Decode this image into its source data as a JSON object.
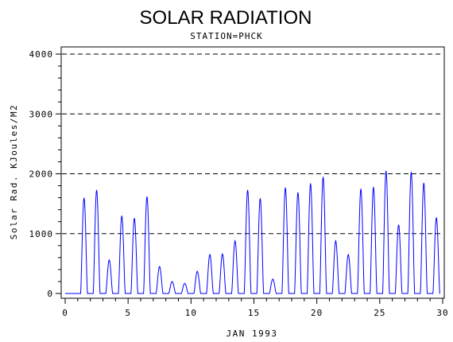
{
  "chart_data": {
    "type": "line",
    "title": "SOLAR RADIATION",
    "subtitle": "STATION=PHCK",
    "xlabel": "JAN 1993",
    "ylabel": "Solar Rad. KJoules/M2",
    "xlim": [
      0,
      30
    ],
    "ylim": [
      0,
      4000
    ],
    "xticks": [
      0,
      5,
      10,
      15,
      20,
      25,
      30
    ],
    "yticks": [
      0,
      1000,
      2000,
      3000,
      4000
    ],
    "grid": "horizontal-dashed",
    "series_color": "#0000ff",
    "daily_peaks": [
      {
        "day": 1,
        "x": 1.5,
        "peak": 1600
      },
      {
        "day": 2,
        "x": 2.5,
        "peak": 1730
      },
      {
        "day": 3,
        "x": 3.5,
        "peak": 560
      },
      {
        "day": 4,
        "x": 4.5,
        "peak": 1300
      },
      {
        "day": 5,
        "x": 5.5,
        "peak": 1260
      },
      {
        "day": 6,
        "x": 6.5,
        "peak": 1620
      },
      {
        "day": 7,
        "x": 7.5,
        "peak": 450
      },
      {
        "day": 8,
        "x": 8.5,
        "peak": 200
      },
      {
        "day": 9,
        "x": 9.5,
        "peak": 170
      },
      {
        "day": 10,
        "x": 10.5,
        "peak": 370
      },
      {
        "day": 11,
        "x": 11.5,
        "peak": 650
      },
      {
        "day": 12,
        "x": 12.5,
        "peak": 660
      },
      {
        "day": 13,
        "x": 13.5,
        "peak": 880
      },
      {
        "day": 14,
        "x": 14.5,
        "peak": 1730
      },
      {
        "day": 15,
        "x": 15.5,
        "peak": 1590
      },
      {
        "day": 16,
        "x": 16.5,
        "peak": 240
      },
      {
        "day": 17,
        "x": 17.5,
        "peak": 1770
      },
      {
        "day": 18,
        "x": 18.5,
        "peak": 1690
      },
      {
        "day": 19,
        "x": 19.5,
        "peak": 1840
      },
      {
        "day": 20,
        "x": 20.5,
        "peak": 1950
      },
      {
        "day": 21,
        "x": 21.5,
        "peak": 880
      },
      {
        "day": 22,
        "x": 22.5,
        "peak": 650
      },
      {
        "day": 23,
        "x": 23.5,
        "peak": 1750
      },
      {
        "day": 24,
        "x": 24.5,
        "peak": 1780
      },
      {
        "day": 25,
        "x": 25.5,
        "peak": 2050
      },
      {
        "day": 26,
        "x": 26.5,
        "peak": 1150
      },
      {
        "day": 27,
        "x": 27.5,
        "peak": 2030
      },
      {
        "day": 28,
        "x": 28.5,
        "peak": 1850
      },
      {
        "day": 29,
        "x": 29.5,
        "peak": 1270
      }
    ]
  }
}
